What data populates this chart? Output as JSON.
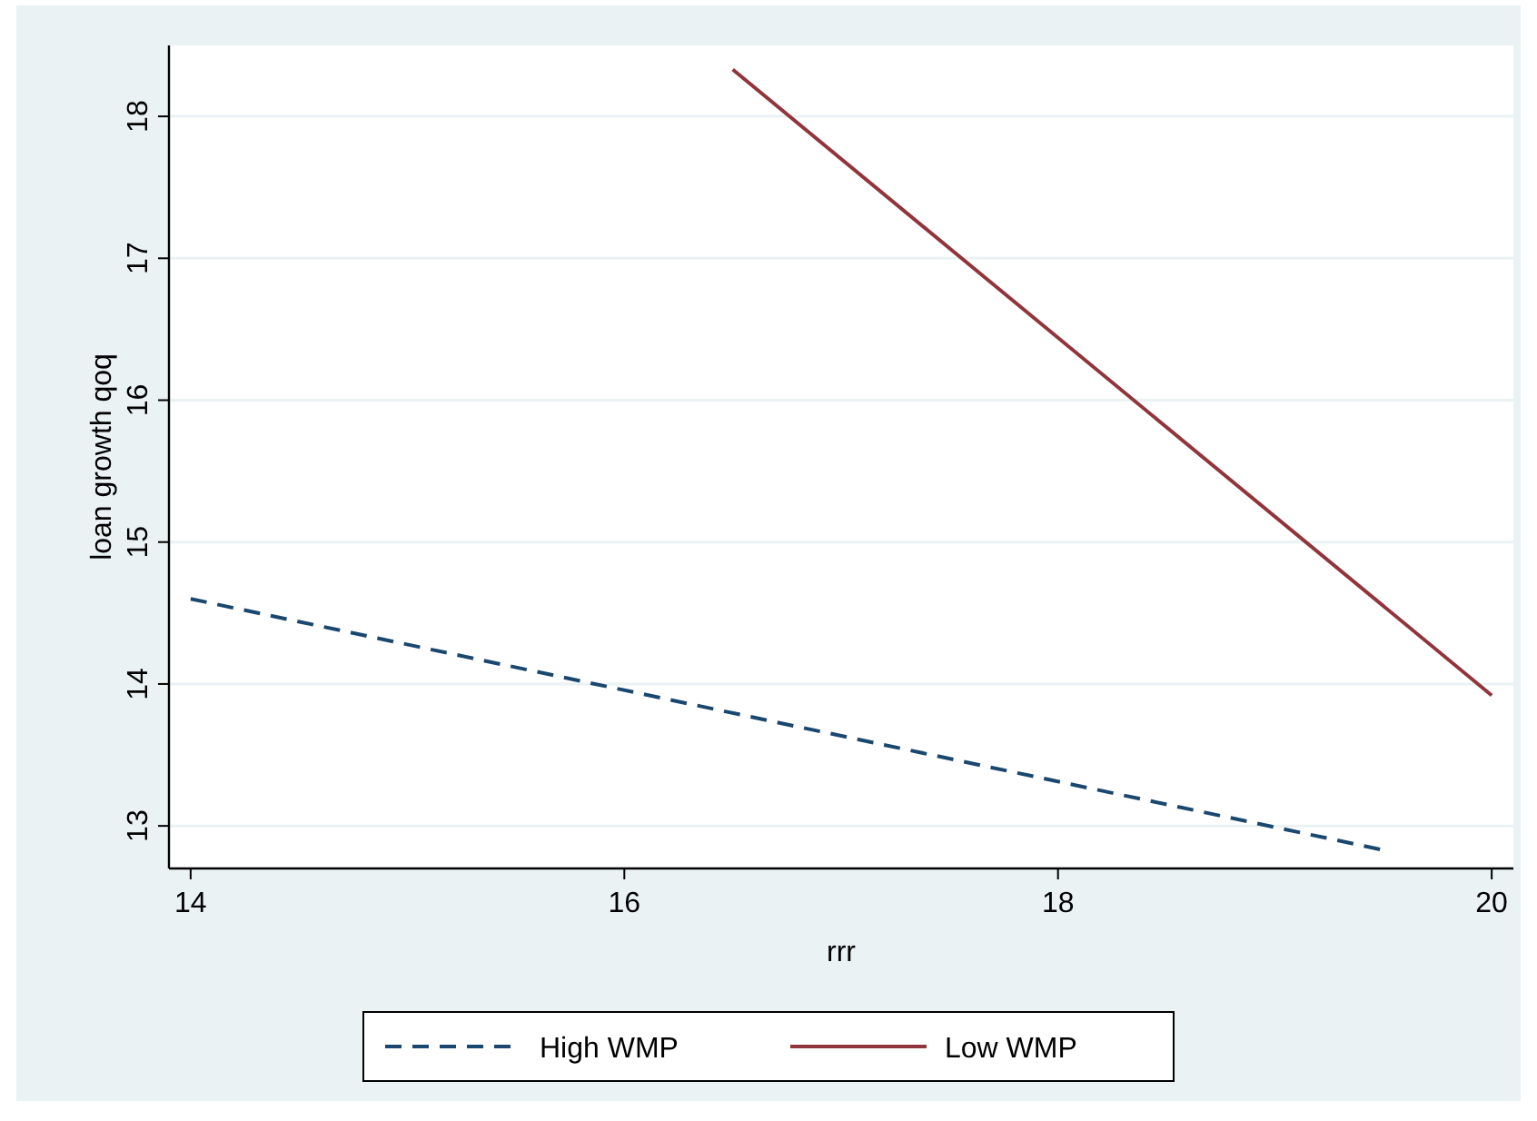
{
  "chart_data": {
    "type": "line",
    "xlabel": "rrr",
    "ylabel": "loan growth qoq",
    "xlim": [
      13.9,
      20.1
    ],
    "xticks": [
      14,
      16,
      18,
      20
    ],
    "ylim": [
      12.7,
      18.5
    ],
    "yticks": [
      13,
      14,
      15,
      16,
      17,
      18
    ],
    "grid": "y",
    "legend": "bottom",
    "series": [
      {
        "name": "High WMP",
        "color": "#1a476f",
        "x": [
          14,
          19.5
        ],
        "values": [
          14.6,
          12.83
        ],
        "line_style": "dashed"
      },
      {
        "name": "Low WMP",
        "color": "#90353b",
        "x": [
          16.5,
          20
        ],
        "values": [
          18.33,
          13.92
        ],
        "line_style": "solid"
      }
    ]
  }
}
